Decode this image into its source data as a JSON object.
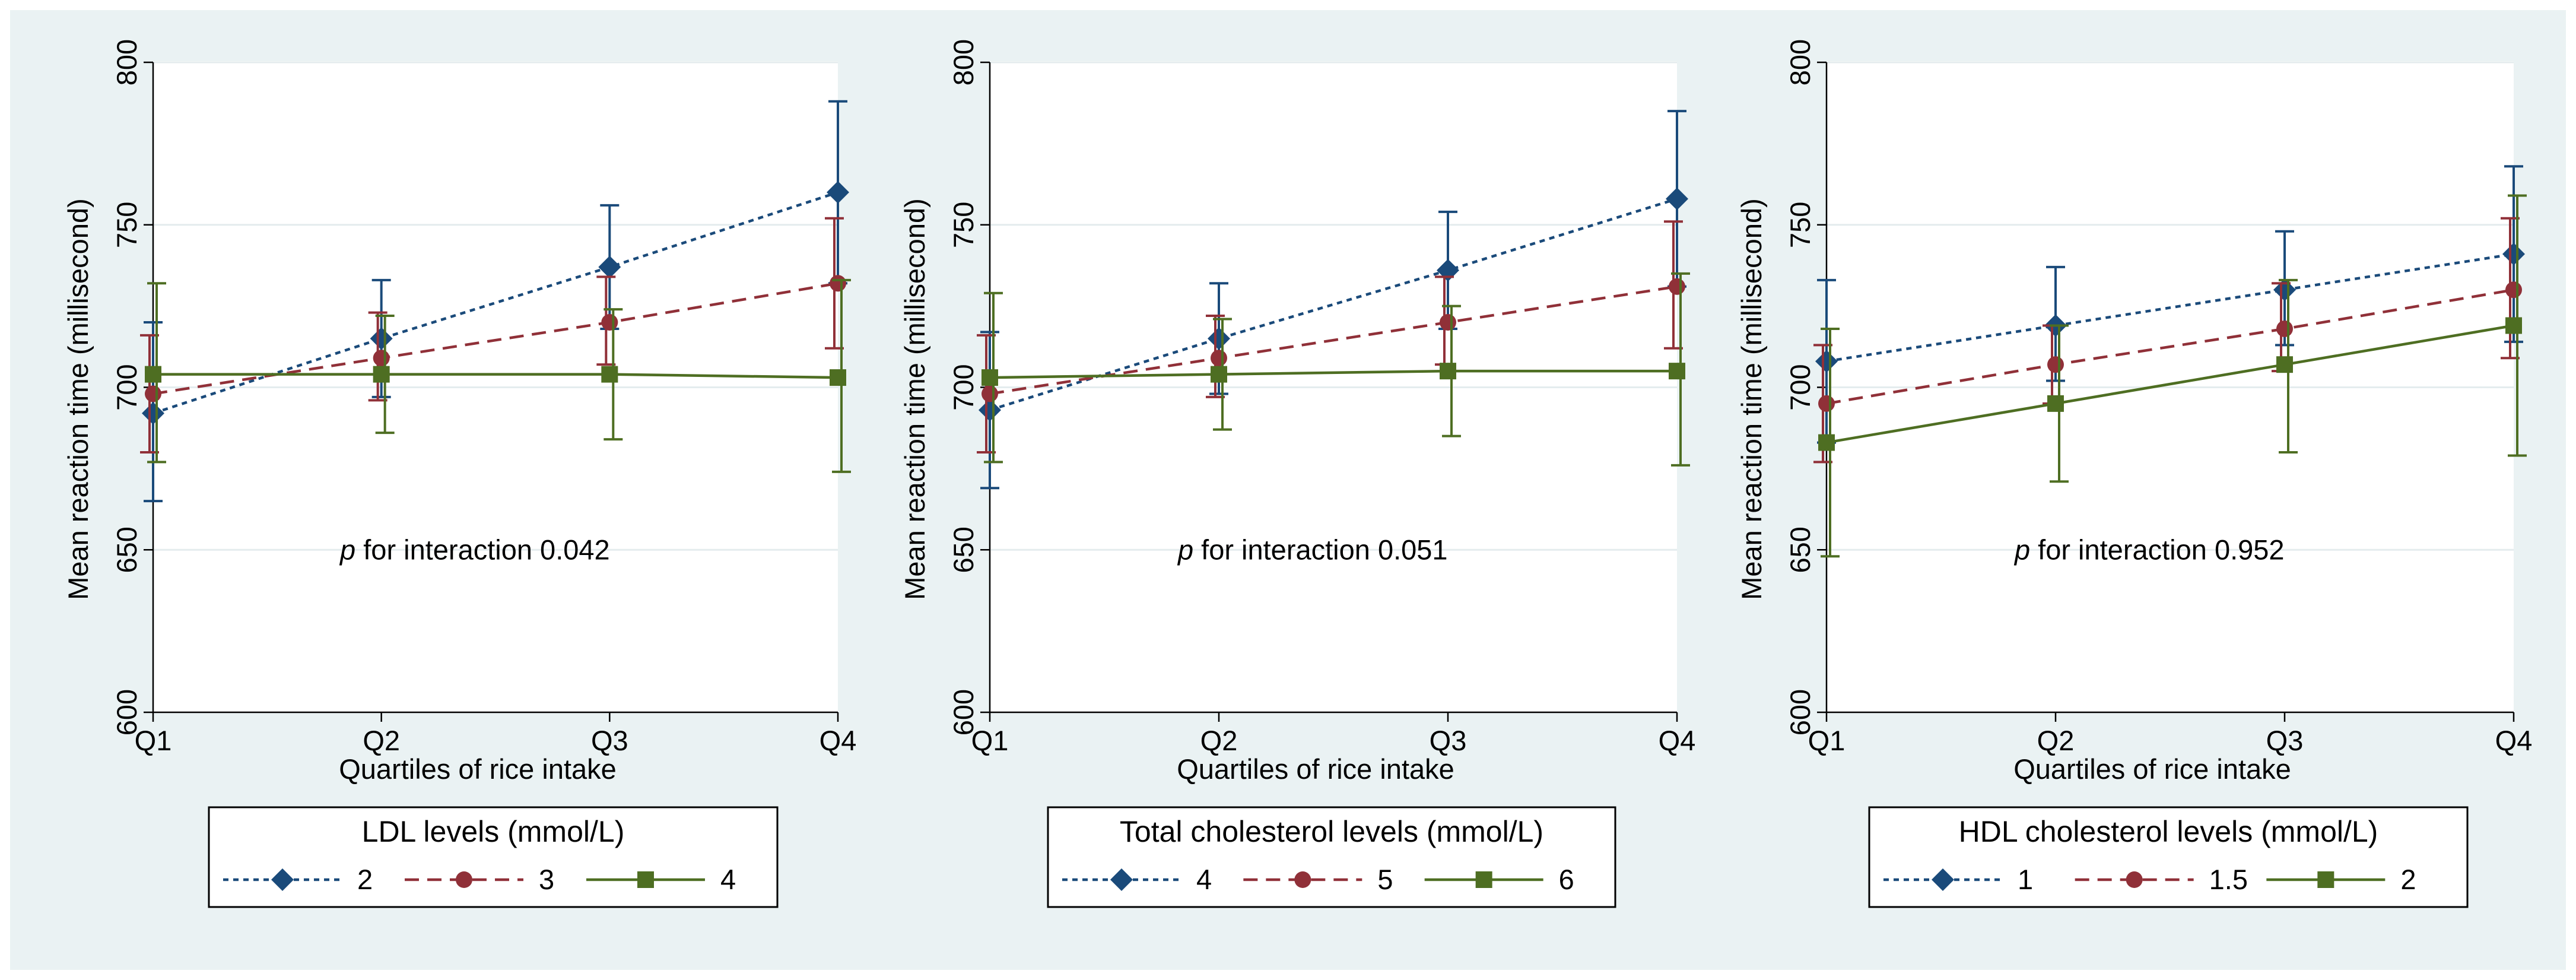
{
  "chart_data": [
    {
      "type": "line",
      "xlabel": "Quartiles of rice intake",
      "ylabel": "Mean reaction time (millisecond)",
      "categories": [
        "Q1",
        "Q2",
        "Q3",
        "Q4"
      ],
      "ylim": [
        600,
        800
      ],
      "yticks": [
        600,
        650,
        700,
        750,
        800
      ],
      "grid": true,
      "annotation": {
        "italic": "p",
        "text": " for interaction 0.042"
      },
      "legend": {
        "title": "LDL levels (mmol/L)",
        "placement": "bottom"
      },
      "series": [
        {
          "name": "2",
          "color": "#1a4a7a",
          "marker": "diamond",
          "dash": "dotted",
          "values": [
            692,
            715,
            737,
            760
          ],
          "lower": [
            665,
            697,
            718,
            732
          ],
          "upper": [
            720,
            733,
            756,
            788
          ]
        },
        {
          "name": "3",
          "color": "#903038",
          "marker": "circle",
          "dash": "dashed",
          "values": [
            698,
            709,
            720,
            732
          ],
          "lower": [
            680,
            696,
            707,
            712
          ],
          "upper": [
            716,
            723,
            734,
            752
          ]
        },
        {
          "name": "4",
          "color": "#4e6e22",
          "marker": "square",
          "dash": "solid",
          "values": [
            704,
            704,
            704,
            703
          ],
          "lower": [
            677,
            686,
            684,
            674
          ],
          "upper": [
            732,
            722,
            724,
            733
          ]
        }
      ]
    },
    {
      "type": "line",
      "xlabel": "Quartiles of rice intake",
      "ylabel": "Mean reaction time (millisecond)",
      "categories": [
        "Q1",
        "Q2",
        "Q3",
        "Q4"
      ],
      "ylim": [
        600,
        800
      ],
      "yticks": [
        600,
        650,
        700,
        750,
        800
      ],
      "grid": true,
      "annotation": {
        "italic": "p",
        "text": " for interaction 0.051"
      },
      "legend": {
        "title": "Total cholesterol levels (mmol/L)",
        "placement": "bottom"
      },
      "series": [
        {
          "name": "4",
          "color": "#1a4a7a",
          "marker": "diamond",
          "dash": "dotted",
          "values": [
            693,
            715,
            736,
            758
          ],
          "lower": [
            669,
            698,
            718,
            731
          ],
          "upper": [
            717,
            732,
            754,
            785
          ]
        },
        {
          "name": "5",
          "color": "#903038",
          "marker": "circle",
          "dash": "dashed",
          "values": [
            698,
            709,
            720,
            731
          ],
          "lower": [
            680,
            697,
            707,
            712
          ],
          "upper": [
            716,
            722,
            734,
            751
          ]
        },
        {
          "name": "6",
          "color": "#4e6e22",
          "marker": "square",
          "dash": "solid",
          "values": [
            703,
            704,
            705,
            705
          ],
          "lower": [
            677,
            687,
            685,
            676
          ],
          "upper": [
            729,
            721,
            725,
            735
          ]
        }
      ]
    },
    {
      "type": "line",
      "xlabel": "Quartiles of rice intake",
      "ylabel": "Mean reaction time (millisecond)",
      "categories": [
        "Q1",
        "Q2",
        "Q3",
        "Q4"
      ],
      "ylim": [
        600,
        800
      ],
      "yticks": [
        600,
        650,
        700,
        750,
        800
      ],
      "grid": true,
      "annotation": {
        "italic": "p",
        "text": " for interaction 0.952"
      },
      "legend": {
        "title": "HDL cholesterol levels (mmol/L)",
        "placement": "bottom"
      },
      "series": [
        {
          "name": "1",
          "color": "#1a4a7a",
          "marker": "diamond",
          "dash": "dotted",
          "values": [
            708,
            719,
            730,
            741
          ],
          "lower": [
            683,
            702,
            713,
            714
          ],
          "upper": [
            733,
            737,
            748,
            768
          ]
        },
        {
          "name": "1.5",
          "color": "#903038",
          "marker": "circle",
          "dash": "dashed",
          "values": [
            695,
            707,
            718,
            730
          ],
          "lower": [
            677,
            695,
            705,
            709
          ],
          "upper": [
            713,
            719,
            732,
            752
          ]
        },
        {
          "name": "2",
          "color": "#4e6e22",
          "marker": "square",
          "dash": "solid",
          "values": [
            683,
            695,
            707,
            719
          ],
          "lower": [
            648,
            671,
            680,
            679
          ],
          "upper": [
            718,
            719,
            733,
            759
          ]
        }
      ]
    }
  ]
}
